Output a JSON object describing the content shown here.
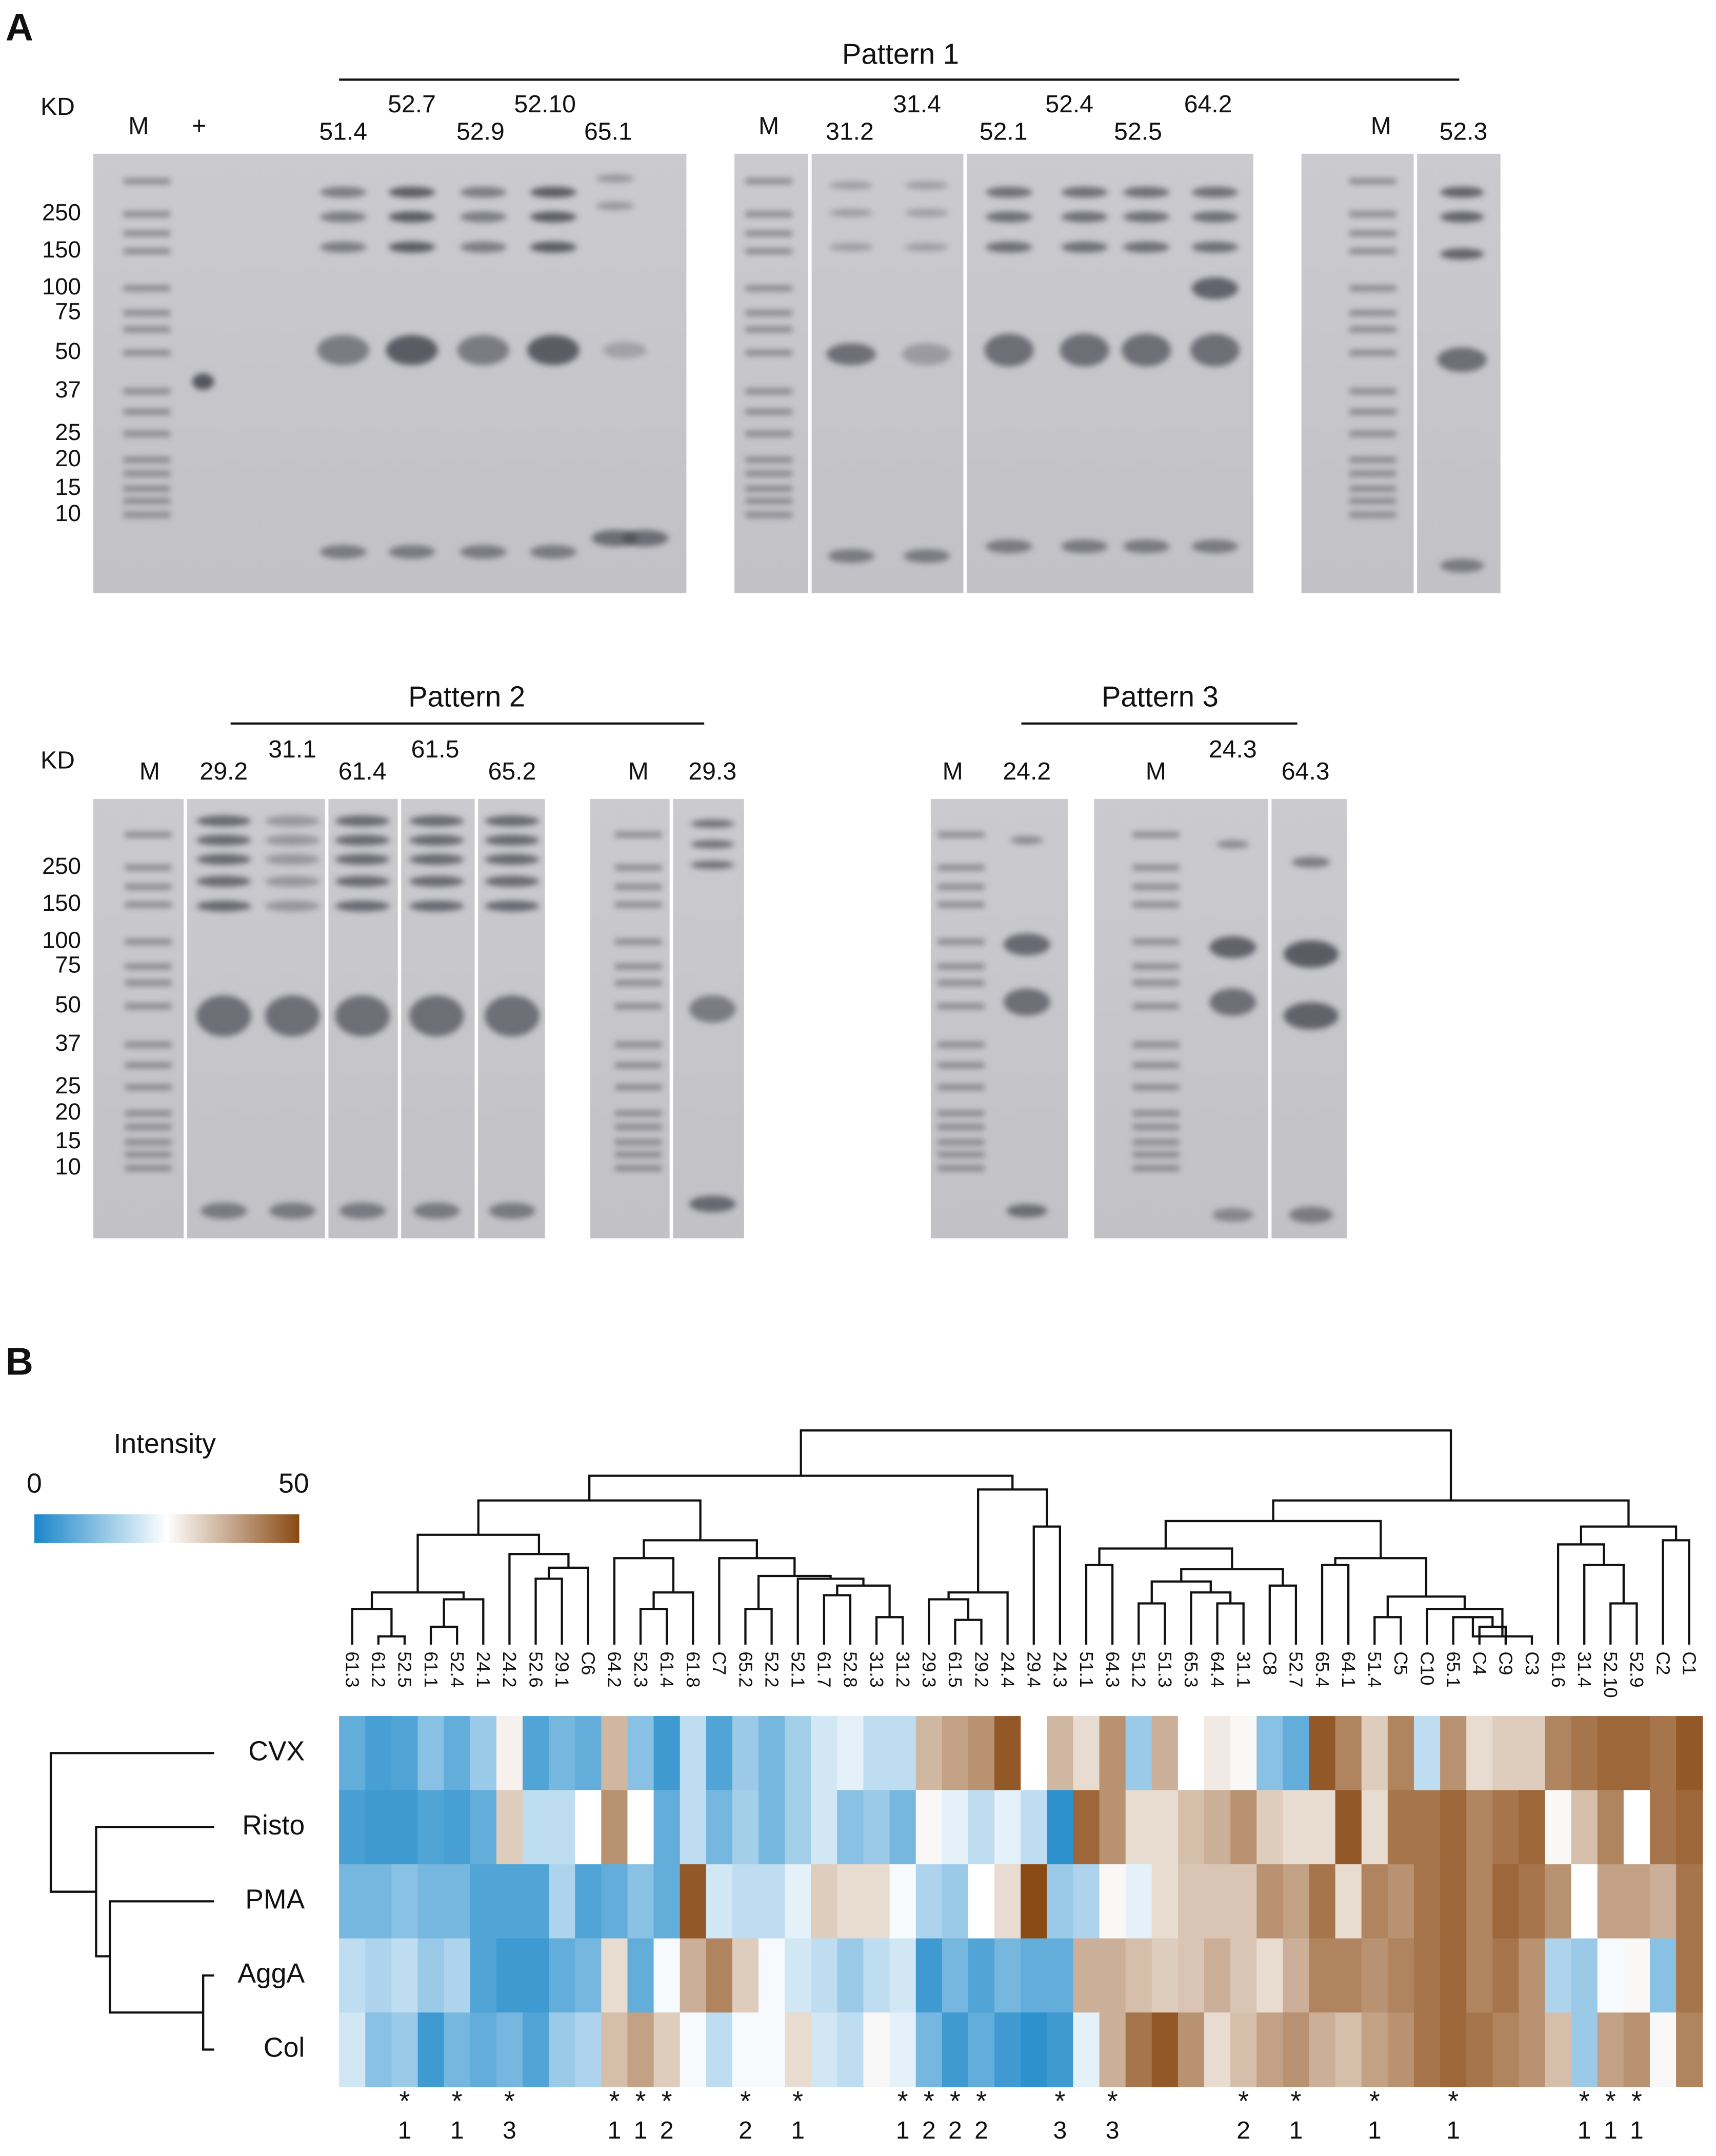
{
  "panel_a": {
    "label": "A",
    "row1": {
      "kd": "KD",
      "kd_ticks": [
        "250",
        "150",
        "100",
        "75",
        "50",
        "37",
        "25",
        "20",
        "15",
        "10"
      ],
      "pattern": "Pattern 1",
      "lanes": [
        "M",
        "+",
        "51.4",
        "52.7",
        "52.9",
        "52.10",
        "65.1",
        "M",
        "31.2",
        "31.4",
        "52.1",
        "52.4",
        "52.5",
        "64.2",
        "M",
        "52.3"
      ]
    },
    "row2": {
      "kd": "KD",
      "kd_ticks": [
        "250",
        "150",
        "100",
        "75",
        "50",
        "37",
        "25",
        "20",
        "15",
        "10"
      ],
      "pattern_2": "Pattern 2",
      "lanes_2": [
        "M",
        "29.2",
        "31.1",
        "61.4",
        "61.5",
        "65.2",
        "M",
        "29.3"
      ],
      "pattern_3": "Pattern 3",
      "lanes_3": [
        "M",
        "24.2",
        "M",
        "24.3",
        "64.3"
      ]
    }
  },
  "panel_b": {
    "label": "B",
    "colorbar": {
      "title": "Intensity",
      "min": 0,
      "max": 50
    },
    "columns": [
      "61.3",
      "61.2",
      "52.5",
      "61.1",
      "52.4",
      "24.1",
      "24.2",
      "52.6",
      "29.1",
      "C6",
      "64.2",
      "52.3",
      "61.4",
      "61.8",
      "C7",
      "65.2",
      "52.2",
      "52.1",
      "61.7",
      "52.8",
      "31.3",
      "31.2",
      "29.3",
      "61.5",
      "29.2",
      "24.4",
      "29.4",
      "24.3",
      "51.1",
      "64.3",
      "51.2",
      "51.3",
      "65.3",
      "64.4",
      "31.1",
      "C8",
      "52.7",
      "65.4",
      "64.1",
      "51.4",
      "C5",
      "C10",
      "65.1",
      "C4",
      "C9",
      "C3",
      "61.6",
      "31.4",
      "52.10",
      "52.9",
      "C2",
      "C1"
    ],
    "rows": [
      "CVX",
      "Risto",
      "PMA",
      "AggA",
      "Col"
    ],
    "values": [
      [
        8,
        5,
        6,
        12,
        8,
        14,
        27,
        6,
        10,
        8,
        35,
        12,
        4,
        18,
        6,
        14,
        10,
        15,
        20,
        22,
        18,
        18,
        35,
        38,
        40,
        48,
        25,
        35,
        30,
        40,
        14,
        36,
        25,
        28,
        26,
        12,
        8,
        48,
        42,
        32,
        42,
        18,
        40,
        30,
        32,
        32,
        42,
        44,
        46,
        46,
        44,
        48
      ],
      [
        5,
        4,
        4,
        6,
        5,
        8,
        32,
        18,
        18,
        25,
        40,
        25,
        8,
        18,
        10,
        15,
        10,
        15,
        20,
        12,
        14,
        10,
        26,
        22,
        18,
        22,
        18,
        2,
        46,
        40,
        30,
        30,
        34,
        36,
        40,
        32,
        30,
        30,
        48,
        30,
        44,
        44,
        46,
        42,
        44,
        46,
        26,
        34,
        42,
        25,
        44,
        46
      ],
      [
        10,
        10,
        12,
        10,
        10,
        6,
        6,
        6,
        16,
        6,
        8,
        12,
        8,
        48,
        20,
        18,
        18,
        22,
        32,
        30,
        30,
        24,
        16,
        14,
        25,
        30,
        50,
        14,
        16,
        26,
        22,
        30,
        33,
        33,
        33,
        40,
        38,
        44,
        30,
        42,
        40,
        44,
        46,
        42,
        46,
        44,
        40,
        25,
        38,
        38,
        36,
        44
      ],
      [
        18,
        16,
        18,
        14,
        16,
        6,
        4,
        4,
        8,
        10,
        30,
        8,
        24,
        36,
        42,
        32,
        24,
        20,
        18,
        14,
        18,
        20,
        4,
        10,
        6,
        10,
        8,
        8,
        36,
        36,
        34,
        32,
        33,
        36,
        33,
        30,
        36,
        42,
        42,
        40,
        42,
        44,
        46,
        42,
        44,
        40,
        16,
        14,
        24,
        26,
        12,
        44
      ],
      [
        20,
        12,
        14,
        4,
        10,
        8,
        10,
        6,
        14,
        16,
        34,
        38,
        32,
        24,
        18,
        24,
        24,
        30,
        20,
        18,
        26,
        22,
        10,
        4,
        8,
        4,
        2,
        4,
        22,
        36,
        44,
        48,
        40,
        30,
        34,
        38,
        40,
        36,
        34,
        38,
        40,
        44,
        46,
        44,
        42,
        40,
        34,
        14,
        38,
        40,
        26,
        42
      ]
    ],
    "star": "*",
    "patterns": [
      null,
      null,
      1,
      null,
      1,
      null,
      3,
      null,
      null,
      null,
      1,
      1,
      2,
      null,
      null,
      2,
      null,
      1,
      null,
      null,
      null,
      1,
      2,
      2,
      2,
      null,
      null,
      3,
      null,
      3,
      null,
      null,
      null,
      null,
      2,
      null,
      1,
      null,
      null,
      1,
      null,
      null,
      1,
      null,
      null,
      null,
      null,
      1,
      1,
      1,
      null,
      null
    ]
  }
}
